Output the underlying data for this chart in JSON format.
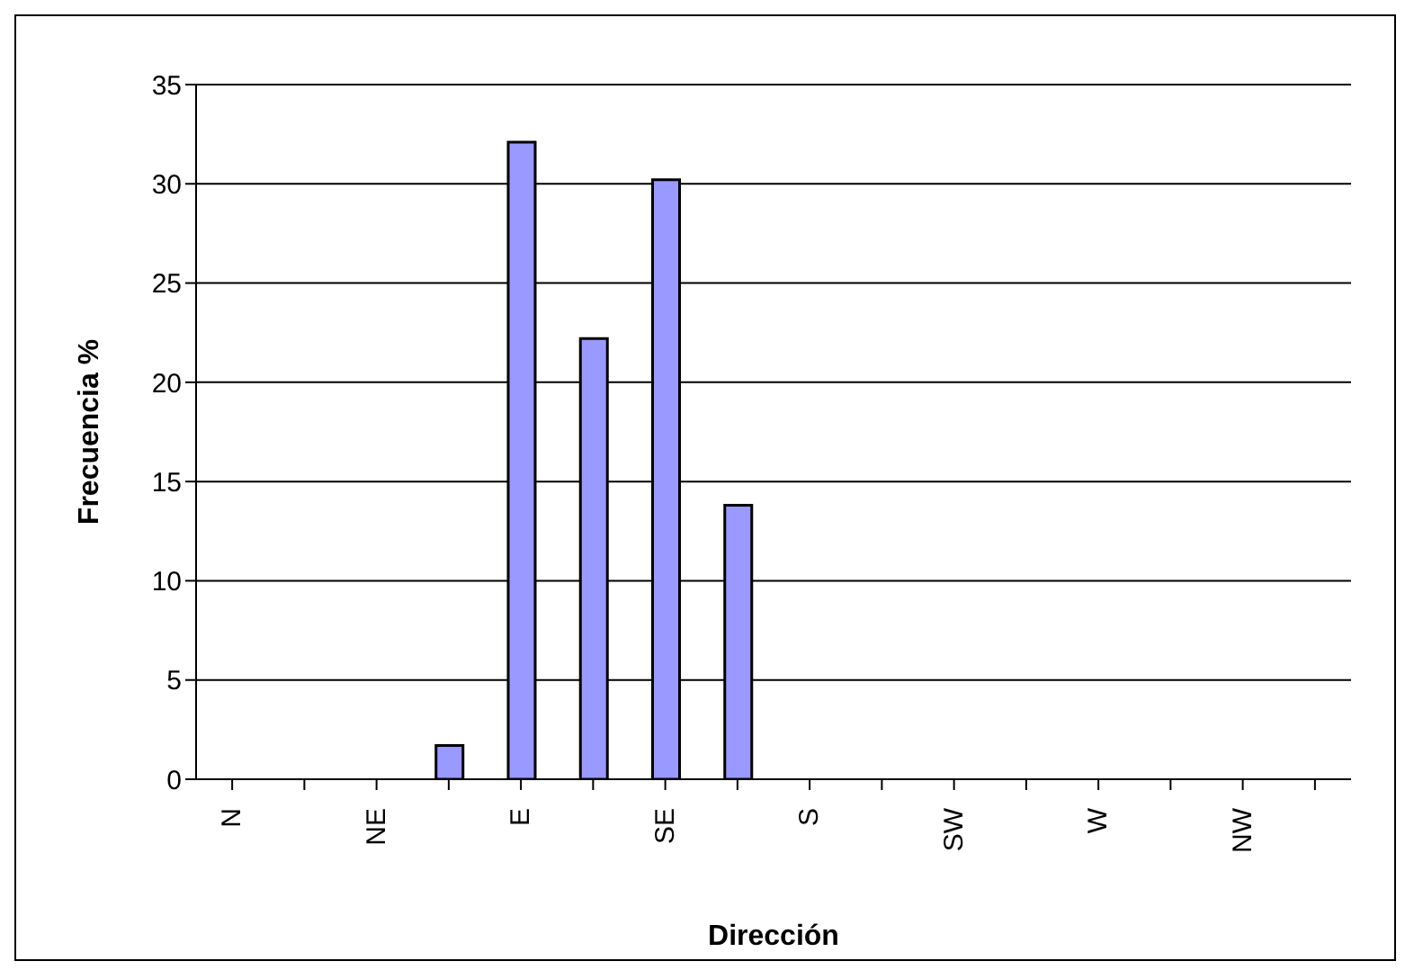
{
  "chart_data": {
    "type": "bar",
    "xlabel": "Dirección",
    "ylabel": "Frecuencia %",
    "categories": [
      "N",
      null,
      "NE",
      null,
      "E",
      null,
      "SE",
      null,
      "S",
      null,
      "SW",
      null,
      "W",
      null,
      "NW",
      null
    ],
    "values": [
      0,
      0,
      0,
      1.7,
      32.1,
      22.2,
      30.2,
      13.8,
      0,
      0,
      0,
      0,
      0,
      0,
      0,
      0
    ],
    "color": "#9999ff",
    "ylim": [
      0,
      35
    ],
    "yticks": [
      0,
      5,
      10,
      15,
      20,
      25,
      30,
      35
    ],
    "grid": "y"
  }
}
